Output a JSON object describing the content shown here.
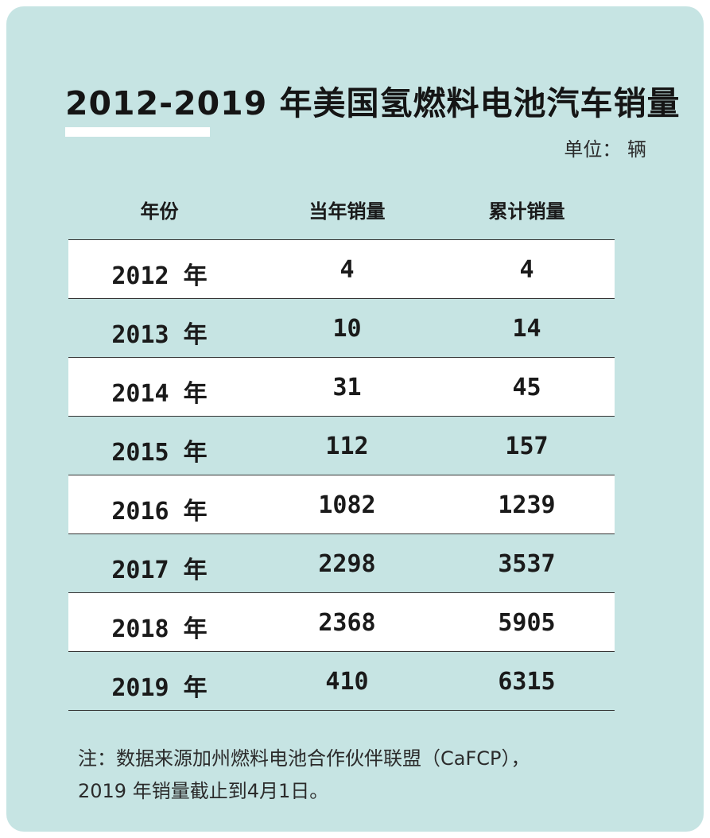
{
  "title": "2012-2019 年美国氢燃料电池汽车销量",
  "unit": "单位：  辆",
  "chart_data": {
    "type": "table",
    "columns": [
      "年份",
      "当年销量",
      "累计销量"
    ],
    "rows": [
      {
        "year": "2012 年",
        "annual": "4",
        "cumulative": "4"
      },
      {
        "year": "2013 年",
        "annual": "10",
        "cumulative": "14"
      },
      {
        "year": "2014 年",
        "annual": "31",
        "cumulative": "45"
      },
      {
        "year": "2015 年",
        "annual": "112",
        "cumulative": "157"
      },
      {
        "year": "2016 年",
        "annual": "1082",
        "cumulative": "1239"
      },
      {
        "year": "2017 年",
        "annual": "2298",
        "cumulative": "3537"
      },
      {
        "year": "2018 年",
        "annual": "2368",
        "cumulative": "5905"
      },
      {
        "year": "2019 年",
        "annual": "410",
        "cumulative": "6315"
      }
    ]
  },
  "note": {
    "line1": "注：数据来源加州燃料电池合作伙伴联盟（CaFCP），",
    "line2": "2019 年销量截止到4月1日。"
  },
  "colors": {
    "card_bg": "#c6e4e3",
    "row_highlight": "#ffffff",
    "text": "#1a1a1a"
  }
}
